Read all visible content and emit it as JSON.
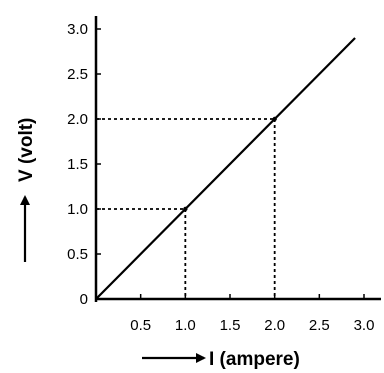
{
  "chart_data": {
    "type": "line",
    "xlabel": "I (ampere)",
    "ylabel": "V (volt)",
    "xlim": [
      0,
      3.0
    ],
    "ylim": [
      0,
      3.0
    ],
    "x_ticks": [
      "0.5",
      "1.0",
      "1.5",
      "2.0",
      "2.5",
      "3.0"
    ],
    "y_ticks": [
      "0",
      "0.5",
      "1.0",
      "1.5",
      "2.0",
      "2.5",
      "3.0"
    ],
    "grid": false,
    "series": [
      {
        "x": [
          0,
          2.9
        ],
        "y": [
          0,
          2.9
        ]
      }
    ],
    "guide_points": [
      {
        "x": 1.0,
        "y": 1.0
      },
      {
        "x": 2.0,
        "y": 2.0
      }
    ]
  }
}
